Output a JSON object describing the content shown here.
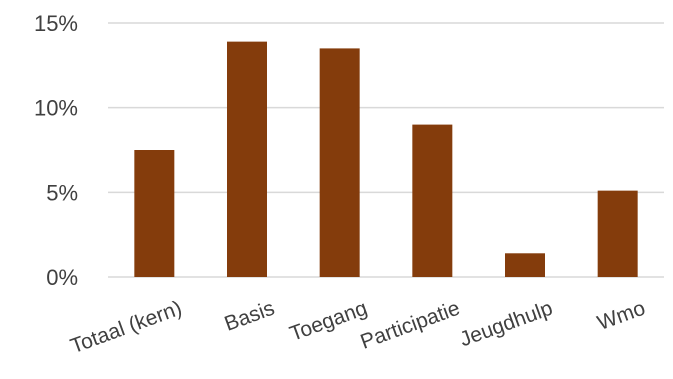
{
  "chart_data": {
    "type": "bar",
    "title": "",
    "xlabel": "",
    "ylabel": "",
    "categories": [
      "Totaal (kern)",
      "Basis",
      "Toegang",
      "Participatie",
      "Jeugdhulp",
      "Wmo"
    ],
    "values": [
      7.5,
      13.9,
      13.5,
      9.0,
      1.4,
      5.1
    ],
    "ylim": [
      0,
      15
    ],
    "yticks": [
      0,
      5,
      10,
      15
    ],
    "ytick_labels": [
      "0%",
      "5%",
      "10%",
      "15%"
    ],
    "grid": true,
    "legend": "none",
    "bar_color": "#843c0c"
  }
}
